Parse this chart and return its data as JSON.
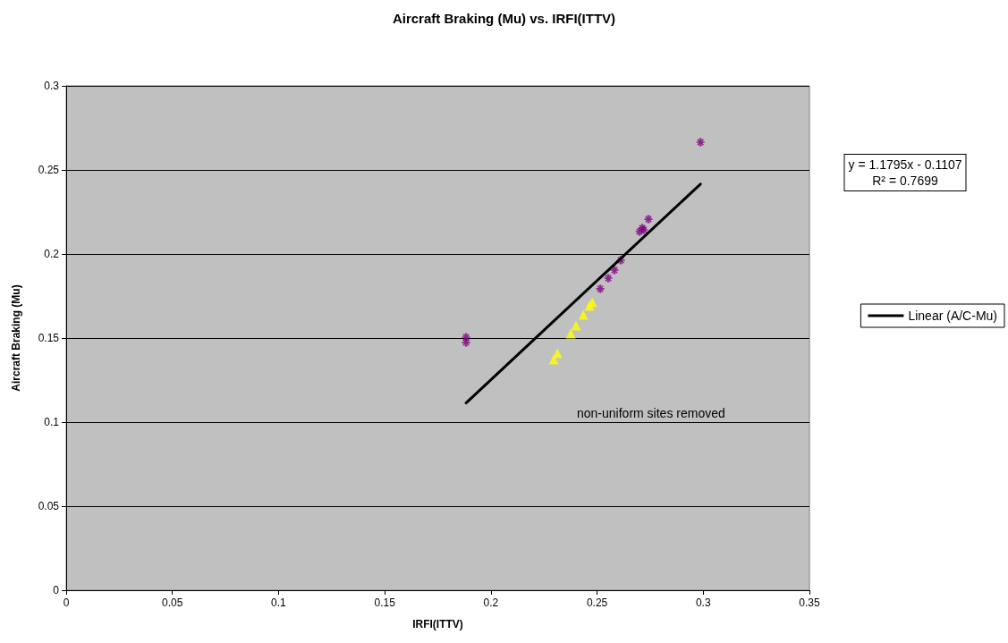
{
  "chart_data": {
    "type": "scatter",
    "title": "Aircraft Braking (Mu) vs. IRFI(ITTV)",
    "xlabel": "IRFI(ITTV)",
    "ylabel": "Aircraft Braking (Mu)",
    "annotations": [
      "y = 1.1795x - 0.1107\nR² = 0.7699",
      "non-uniform sites removed"
    ],
    "xlim": [
      0,
      0.35
    ],
    "xticks": [
      0,
      0.05,
      0.1,
      0.15,
      0.2,
      0.25,
      0.3,
      0.35
    ],
    "ylim": [
      0,
      0.3
    ],
    "yticks": [
      0,
      0.05,
      0.1,
      0.15,
      0.2,
      0.25,
      0.3
    ],
    "grid": "y",
    "legend": "right",
    "series": [
      {
        "marker": "triangle",
        "color": "#ffff00",
        "x": [
          0.2296,
          0.2313,
          0.2376,
          0.2401,
          0.2435,
          0.2464,
          0.2477
        ],
        "values": [
          0.1372,
          0.141,
          0.1527,
          0.1574,
          0.1638,
          0.1691,
          0.1713
        ]
      },
      {
        "marker": "cross",
        "color": "#800080",
        "x": [
          0.1883,
          0.1883,
          0.2515,
          0.2553,
          0.2582,
          0.2612,
          0.27,
          0.2713,
          0.272,
          0.2742,
          0.2987
        ],
        "values": [
          0.1505,
          0.1473,
          0.1793,
          0.1856,
          0.1904,
          0.1963,
          0.2133,
          0.2154,
          0.2144,
          0.2207,
          0.2665
        ]
      },
      {
        "type": "line",
        "name": "Linear (A/C-Mu)",
        "color": "#000000",
        "marker": "none",
        "line_style": "solid",
        "x": [
          0.1883,
          0.2987
        ],
        "values": [
          0.1114,
          0.2416
        ]
      }
    ]
  }
}
